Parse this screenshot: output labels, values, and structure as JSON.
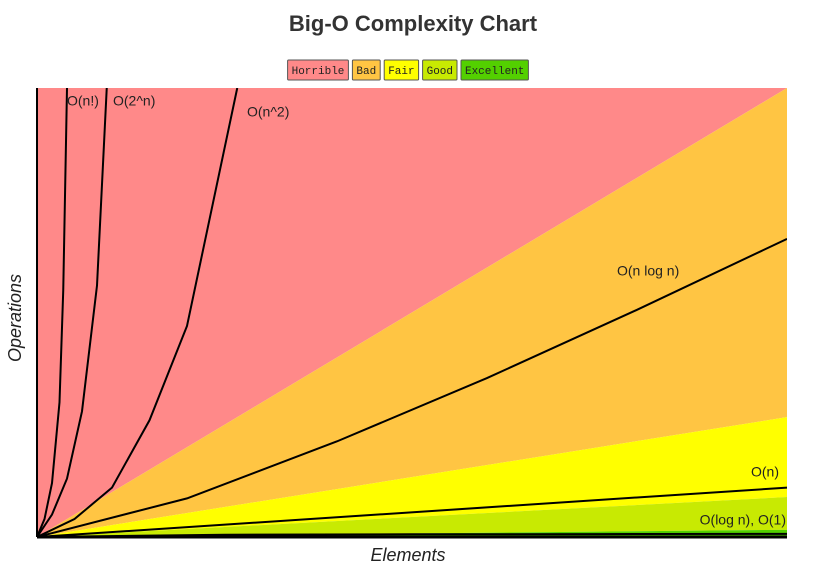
{
  "chart_data": {
    "type": "complexity",
    "title": "Big-O Complexity Chart",
    "x_label": "Elements",
    "y_label": "Operations",
    "xlim": [
      0,
      100
    ],
    "ylim": [
      0,
      1000
    ],
    "zones": [
      {
        "name": "Horrible",
        "color": "#ff8989",
        "x": [
          0,
          100
        ],
        "values": [
          1000,
          1000
        ]
      },
      {
        "name": "Bad",
        "color": "#ffc543",
        "x": [
          0,
          100
        ],
        "values": [
          0,
          1000
        ]
      },
      {
        "name": "Fair",
        "color": "#ffff00",
        "x": [
          0,
          100
        ],
        "values": [
          0,
          267
        ]
      },
      {
        "name": "Good",
        "color": "#c8ea02",
        "x": [
          0,
          100
        ],
        "values": [
          0,
          89
        ]
      },
      {
        "name": "Excellent",
        "color": "#53d000",
        "x": [
          0,
          100
        ],
        "values": [
          0,
          16
        ]
      }
    ],
    "curves": [
      {
        "label": "O(n!)",
        "x": [
          0,
          1,
          2,
          3,
          3.5,
          4
        ],
        "values": [
          0,
          40,
          120,
          300,
          550,
          1000
        ]
      },
      {
        "label": "O(2^n)",
        "x": [
          0,
          2,
          4,
          6,
          8,
          9.3
        ],
        "values": [
          0,
          50,
          130,
          280,
          560,
          1000
        ]
      },
      {
        "label": "O(n^2)",
        "x": [
          0,
          5,
          10,
          15,
          20,
          26.7
        ],
        "values": [
          0,
          40,
          110,
          260,
          470,
          1000
        ]
      },
      {
        "label": "O(n log n)",
        "x": [
          0,
          20,
          40,
          60,
          80,
          100
        ],
        "values": [
          0,
          86,
          213,
          354,
          506,
          664
        ]
      },
      {
        "label": "O(n)",
        "x": [
          0,
          100
        ],
        "values": [
          0,
          110
        ]
      },
      {
        "label": "O(log n), O(1)",
        "x": [
          0,
          25,
          50,
          75,
          100
        ],
        "values": [
          0,
          5,
          6,
          6.5,
          7
        ]
      }
    ]
  }
}
